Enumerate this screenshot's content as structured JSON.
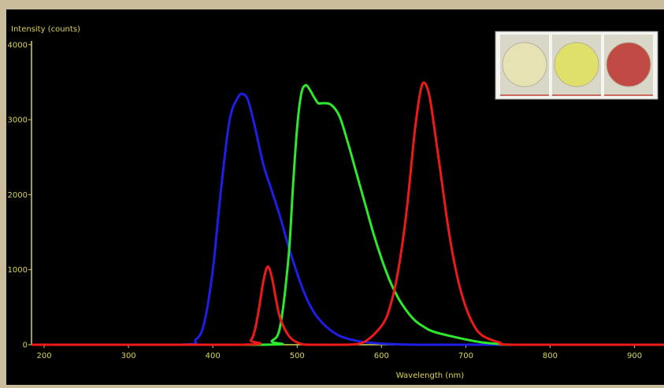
{
  "chart_data": {
    "type": "line",
    "title": "",
    "xlabel": "Wavelength (nm)",
    "ylabel": "Intensity (counts)",
    "xlim": [
      185,
      935
    ],
    "ylim": [
      0,
      4050
    ],
    "x_ticks": [
      200,
      300,
      400,
      500,
      600,
      700,
      800,
      900
    ],
    "y_ticks": [
      0,
      1000,
      2000,
      3000,
      4000
    ],
    "grid": false,
    "legend": "none",
    "colors": {
      "background": "#000000",
      "axis": "#d8d35a",
      "tick_labels": "#d8d35a",
      "blue": "#1e1ee6",
      "green": "#2ee82e",
      "red": "#ee1a1a"
    },
    "series": [
      {
        "color": "#1e1ee6",
        "x": [
          185,
          360,
          380,
          390,
          400,
          410,
          420,
          430,
          436,
          442,
          450,
          460,
          470,
          480,
          490,
          500,
          510,
          520,
          530,
          540,
          550,
          560,
          570,
          580,
          600,
          620,
          650,
          700,
          935
        ],
        "y": [
          0,
          0,
          70,
          300,
          1000,
          2100,
          3000,
          3300,
          3340,
          3250,
          2900,
          2400,
          2050,
          1700,
          1300,
          950,
          650,
          430,
          290,
          190,
          120,
          80,
          55,
          35,
          15,
          5,
          0,
          0,
          0
        ]
      },
      {
        "color": "#2ee82e",
        "x": [
          185,
          460,
          470,
          480,
          490,
          495,
          500,
          505,
          510,
          515,
          520,
          525,
          530,
          540,
          550,
          560,
          570,
          580,
          590,
          600,
          610,
          620,
          630,
          640,
          650,
          660,
          680,
          700,
          720,
          740,
          760,
          935
        ],
        "y": [
          0,
          0,
          50,
          250,
          1200,
          2100,
          2900,
          3350,
          3460,
          3400,
          3300,
          3220,
          3220,
          3200,
          3050,
          2700,
          2300,
          1900,
          1500,
          1150,
          850,
          620,
          450,
          320,
          240,
          180,
          120,
          70,
          30,
          10,
          0,
          0
        ]
      },
      {
        "color": "#ee1a1a",
        "x": [
          185,
          435,
          445,
          450,
          455,
          460,
          465,
          470,
          475,
          480,
          490,
          500,
          510,
          520,
          540,
          560,
          580,
          600,
          610,
          620,
          630,
          640,
          648,
          655,
          660,
          670,
          680,
          690,
          700,
          710,
          720,
          740,
          760,
          935
        ],
        "y": [
          0,
          0,
          60,
          200,
          500,
          850,
          1040,
          900,
          600,
          350,
          120,
          30,
          0,
          0,
          0,
          0,
          40,
          250,
          500,
          1000,
          1800,
          2900,
          3460,
          3400,
          3100,
          2300,
          1500,
          900,
          500,
          250,
          120,
          30,
          0,
          0
        ]
      }
    ]
  },
  "inset": {
    "swatch_colors": [
      "#e6e2b4",
      "#dfe06a",
      "#c24a45"
    ]
  }
}
